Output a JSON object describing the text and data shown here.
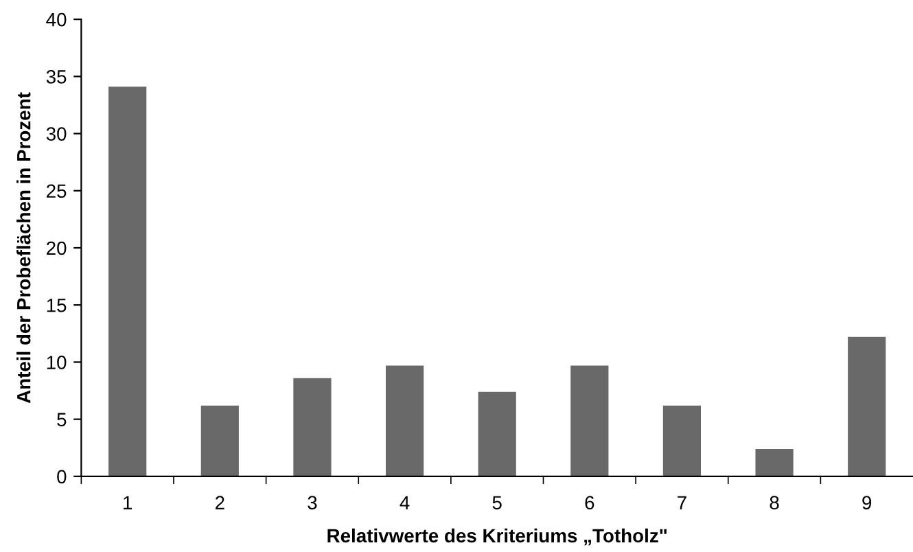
{
  "chart_data": {
    "type": "bar",
    "xlabel": "Relativwerte des Kriteriums „Totholz\"",
    "ylabel": "Anteil der Probeflächen in Prozent",
    "categories": [
      "1",
      "2",
      "3",
      "4",
      "5",
      "6",
      "7",
      "8",
      "9"
    ],
    "values": [
      34.1,
      6.2,
      8.6,
      9.7,
      7.4,
      9.7,
      6.2,
      2.4,
      12.2
    ],
    "color": "#696969",
    "ylim": [
      0,
      40
    ],
    "yticks": [
      0,
      5,
      10,
      15,
      20,
      25,
      30,
      35,
      40
    ],
    "grid": false,
    "legend": false
  }
}
